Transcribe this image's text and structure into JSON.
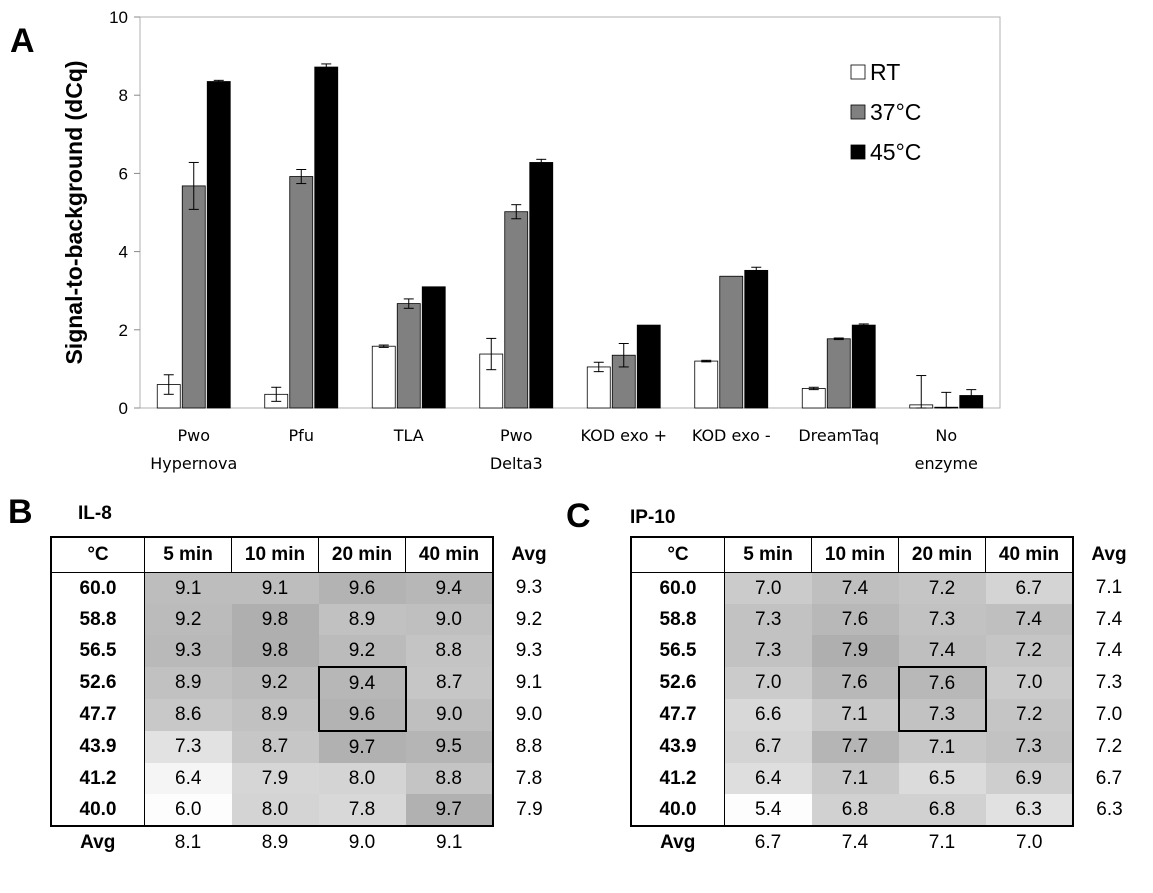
{
  "panel_a_letter": "A",
  "panel_b_letter": "B",
  "panel_c_letter": "C",
  "chart_data": [
    {
      "type": "bar",
      "ylabel": "Signal-to-background (dCq)",
      "ylim": [
        0,
        10
      ],
      "yticks": [
        "0",
        "2",
        "4",
        "6",
        "8",
        "10"
      ],
      "categories": [
        [
          "Pwo",
          "Hypernova"
        ],
        [
          "Pfu"
        ],
        [
          "TLA"
        ],
        [
          "Pwo",
          "Delta3"
        ],
        [
          "KOD exo +"
        ],
        [
          "KOD exo -"
        ],
        [
          "DreamTaq"
        ],
        [
          "No",
          "enzyme"
        ]
      ],
      "legend_position": "top-right",
      "grid": false,
      "series": [
        {
          "name": "RT",
          "color": "#ffffff",
          "values": [
            0.6,
            0.35,
            1.58,
            1.38,
            1.05,
            1.2,
            0.5,
            0.08
          ],
          "errors": [
            0.25,
            0.18,
            0.03,
            0.4,
            0.12,
            0.02,
            0.03,
            0.75
          ]
        },
        {
          "name": "37°C",
          "color": "#808080",
          "values": [
            5.68,
            5.92,
            2.67,
            5.02,
            1.35,
            3.37,
            1.77,
            0.02
          ],
          "errors": [
            0.6,
            0.18,
            0.12,
            0.18,
            0.3,
            0.0,
            0.02,
            0.38
          ]
        },
        {
          "name": "45°C",
          "color": "#000000",
          "values": [
            8.35,
            8.72,
            3.1,
            6.28,
            2.12,
            3.52,
            2.12,
            0.32
          ],
          "errors": [
            0.03,
            0.08,
            0.0,
            0.08,
            0.0,
            0.08,
            0.03,
            0.15
          ]
        }
      ]
    },
    {
      "type": "table",
      "title": "IL-8",
      "corner": "°C",
      "columns": [
        "5 min",
        "10 min",
        "20 min",
        "40 min"
      ],
      "avg_label": "Avg",
      "rows": [
        {
          "temp": "60.0",
          "values": [
            "9.1",
            "9.1",
            "9.6",
            "9.4"
          ],
          "avg": "9.3"
        },
        {
          "temp": "58.8",
          "values": [
            "9.2",
            "9.8",
            "8.9",
            "9.0"
          ],
          "avg": "9.2"
        },
        {
          "temp": "56.5",
          "values": [
            "9.3",
            "9.8",
            "9.2",
            "8.8"
          ],
          "avg": "9.3"
        },
        {
          "temp": "52.6",
          "values": [
            "8.9",
            "9.2",
            "9.4",
            "8.7"
          ],
          "avg": "9.1"
        },
        {
          "temp": "47.7",
          "values": [
            "8.6",
            "8.9",
            "9.6",
            "9.0"
          ],
          "avg": "9.0"
        },
        {
          "temp": "43.9",
          "values": [
            "7.3",
            "8.7",
            "9.7",
            "9.5"
          ],
          "avg": "8.8"
        },
        {
          "temp": "41.2",
          "values": [
            "6.4",
            "7.9",
            "8.0",
            "8.8"
          ],
          "avg": "7.8"
        },
        {
          "temp": "40.0",
          "values": [
            "6.0",
            "8.0",
            "7.8",
            "9.7"
          ],
          "avg": "7.9"
        }
      ],
      "col_avg": [
        "8.1",
        "8.9",
        "9.0",
        "9.1"
      ],
      "highlight": {
        "col": 2,
        "rows": [
          3,
          4
        ]
      },
      "shade_range": [
        6.0,
        9.8
      ]
    },
    {
      "type": "table",
      "title": "IP-10",
      "corner": "°C",
      "columns": [
        "5 min",
        "10 min",
        "20 min",
        "40 min"
      ],
      "avg_label": "Avg",
      "rows": [
        {
          "temp": "60.0",
          "values": [
            "7.0",
            "7.4",
            "7.2",
            "6.7"
          ],
          "avg": "7.1"
        },
        {
          "temp": "58.8",
          "values": [
            "7.3",
            "7.6",
            "7.3",
            "7.4"
          ],
          "avg": "7.4"
        },
        {
          "temp": "56.5",
          "values": [
            "7.3",
            "7.9",
            "7.4",
            "7.2"
          ],
          "avg": "7.4"
        },
        {
          "temp": "52.6",
          "values": [
            "7.0",
            "7.6",
            "7.6",
            "7.0"
          ],
          "avg": "7.3"
        },
        {
          "temp": "47.7",
          "values": [
            "6.6",
            "7.1",
            "7.3",
            "7.2"
          ],
          "avg": "7.0"
        },
        {
          "temp": "43.9",
          "values": [
            "6.7",
            "7.7",
            "7.1",
            "7.3"
          ],
          "avg": "7.2"
        },
        {
          "temp": "41.2",
          "values": [
            "6.4",
            "7.1",
            "6.5",
            "6.9"
          ],
          "avg": "6.7"
        },
        {
          "temp": "40.0",
          "values": [
            "5.4",
            "6.8",
            "6.8",
            "6.3"
          ],
          "avg": "6.3"
        }
      ],
      "col_avg": [
        "6.7",
        "7.4",
        "7.1",
        "7.0"
      ],
      "highlight": {
        "col": 2,
        "rows": [
          3,
          4
        ]
      },
      "shade_range": [
        5.4,
        7.9
      ]
    }
  ]
}
